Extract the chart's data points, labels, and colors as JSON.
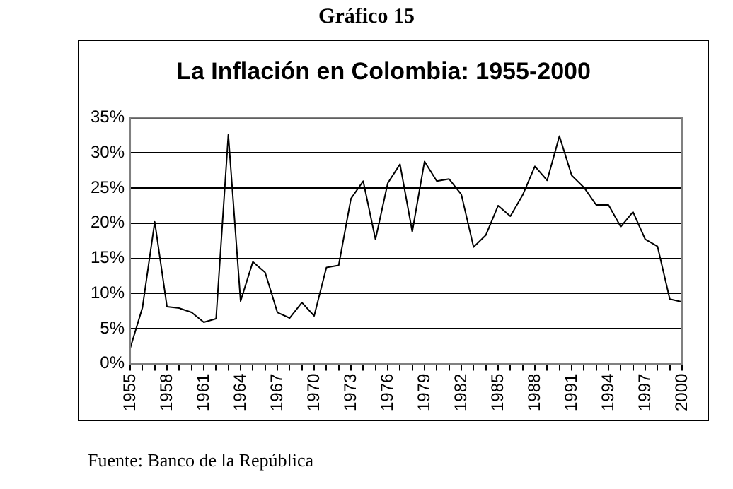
{
  "chart_data": {
    "type": "line",
    "title": "Gráfico 15",
    "subtitle": "La Inflación en Colombia: 1955-2000",
    "categories": [
      "1955",
      null,
      null,
      "1958",
      null,
      null,
      "1961",
      null,
      null,
      "1964",
      null,
      null,
      "1967",
      null,
      null,
      "1970",
      null,
      null,
      "1973",
      null,
      null,
      "1976",
      null,
      null,
      "1979",
      null,
      null,
      "1982",
      null,
      null,
      "1985",
      null,
      null,
      "1988",
      null,
      null,
      "1991",
      null,
      null,
      "1994",
      null,
      null,
      "1997",
      null,
      null,
      "2000"
    ],
    "series": [
      {
        "color": "#000000",
        "values": [
          2.2,
          8,
          20.2,
          8.1,
          7.9,
          7.3,
          5.9,
          6.4,
          32.6,
          8.9,
          14.5,
          13,
          7.3,
          6.5,
          8.7,
          6.8,
          13.7,
          14,
          23.5,
          26,
          17.7,
          25.7,
          28.4,
          18.8,
          28.8,
          26,
          26.3,
          24.1,
          16.6,
          18.3,
          22.5,
          21,
          24,
          28.1,
          26.1,
          32.4,
          26.8,
          25.1,
          22.6,
          22.6,
          19.5,
          21.6,
          17.7,
          16.7,
          9.2,
          8.8
        ]
      }
    ],
    "ylim": [
      0,
      35
    ],
    "yticks": [
      {
        "value": 0,
        "label": "0%"
      },
      {
        "value": 5,
        "label": "5%"
      },
      {
        "value": 10,
        "label": "10%"
      },
      {
        "value": 15,
        "label": "15%"
      },
      {
        "value": 20,
        "label": "20%"
      },
      {
        "value": 25,
        "label": "25%"
      },
      {
        "value": 30,
        "label": "30%"
      },
      {
        "value": 35,
        "label": "35%"
      }
    ],
    "grid": "y",
    "legend": false,
    "marker": "none",
    "line_style": "solid",
    "annotations": [
      "Fuente: Banco de la República"
    ]
  }
}
